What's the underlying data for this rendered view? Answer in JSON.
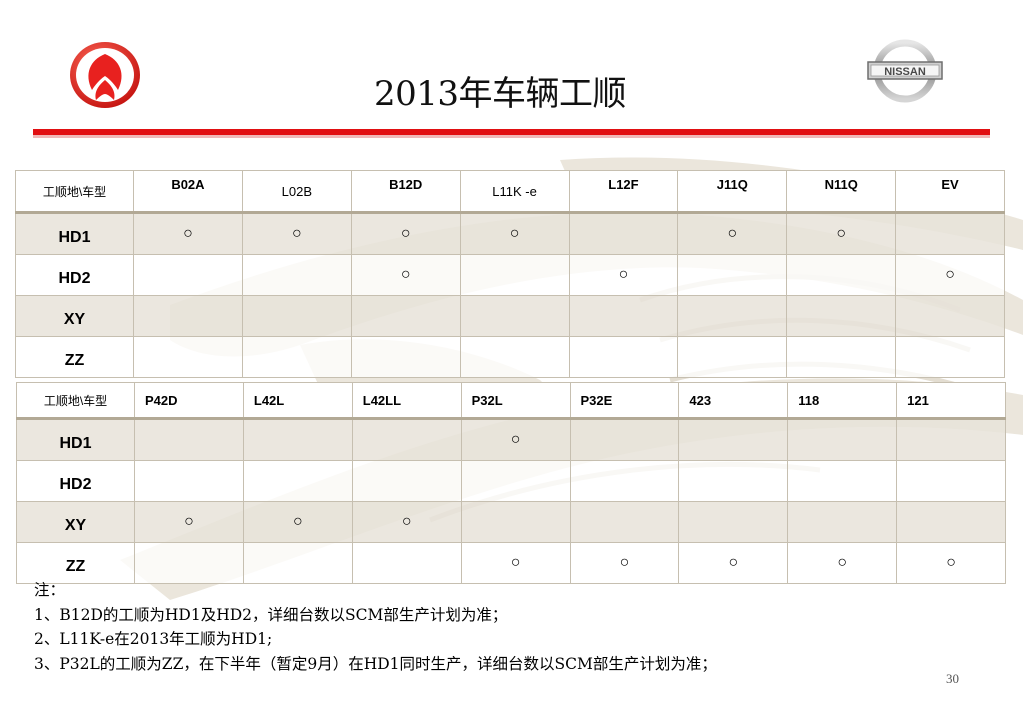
{
  "title": "2013年车辆工顺",
  "logos": {
    "left": {
      "icon": "dongfeng-logo-icon"
    },
    "right": {
      "icon": "nissan-logo-icon",
      "text": "NISSAN"
    }
  },
  "accent_colors": {
    "rule": "#e10f12",
    "rule_light": "#f0b8b8",
    "logo_red": "#e8211f"
  },
  "mark_glyph": "○",
  "table1": {
    "corner_label": "工顺地\\车型",
    "columns": [
      "B02A",
      "L02B",
      "B12D",
      "L11K -e",
      "L12F",
      "J11Q",
      "N11Q",
      "EV"
    ],
    "rows": [
      {
        "label": "HD1",
        "cells": [
          true,
          true,
          true,
          true,
          false,
          true,
          true,
          false
        ]
      },
      {
        "label": "HD2",
        "cells": [
          false,
          false,
          true,
          false,
          true,
          false,
          false,
          true
        ]
      },
      {
        "label": "XY",
        "cells": [
          false,
          false,
          false,
          false,
          false,
          false,
          false,
          false
        ]
      },
      {
        "label": "ZZ",
        "cells": [
          false,
          false,
          false,
          false,
          false,
          false,
          false,
          false
        ]
      }
    ]
  },
  "table2": {
    "corner_label": "工顺地\\车型",
    "columns": [
      "P42D",
      "L42L",
      "L42LL",
      "P32L",
      "P32E",
      "423",
      "118",
      "121"
    ],
    "rows": [
      {
        "label": "HD1",
        "cells": [
          false,
          false,
          false,
          true,
          false,
          false,
          false,
          false
        ]
      },
      {
        "label": "HD2",
        "cells": [
          false,
          false,
          false,
          false,
          false,
          false,
          false,
          false
        ]
      },
      {
        "label": "XY",
        "cells": [
          true,
          true,
          true,
          false,
          false,
          false,
          false,
          false
        ]
      },
      {
        "label": "ZZ",
        "cells": [
          false,
          false,
          false,
          true,
          true,
          true,
          true,
          true
        ]
      }
    ]
  },
  "notes": {
    "heading": "注：",
    "items": [
      "1、B12D的工顺为HD1及HD2，详细台数以SCM部生产计划为准；",
      "2、L11K-e在2013年工顺为HD1;",
      "3、P32L的工顺为ZZ，在下半年（暂定9月）在HD1同时生产，详细台数以SCM部生产计划为准；"
    ]
  },
  "page_number": "30"
}
